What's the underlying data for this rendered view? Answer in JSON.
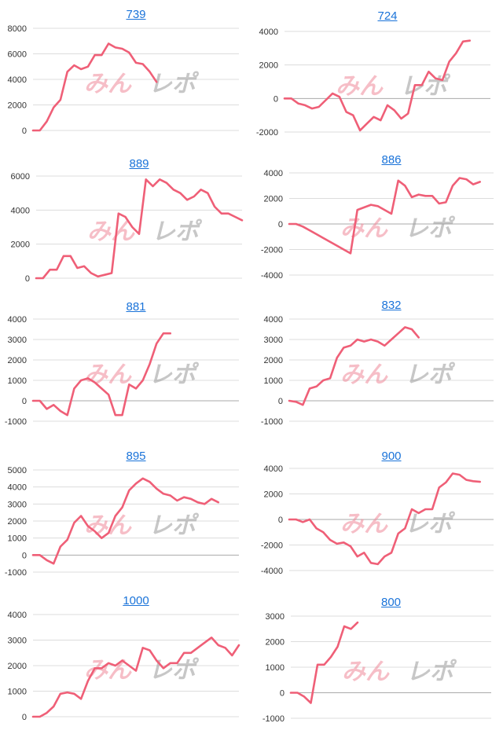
{
  "colors": {
    "series": "#ef5f77",
    "title_link": "#1a73d9",
    "grid": "#dcdcdc"
  },
  "watermark": {
    "part1": "みん",
    "part2": "レポ"
  },
  "chart_data": [
    {
      "type": "line",
      "title": "739",
      "ylim": [
        0,
        8000
      ],
      "yticks": [
        0,
        2000,
        4000,
        6000,
        8000
      ],
      "values": [
        0,
        0,
        700,
        1800,
        2400,
        4600,
        5100,
        4800,
        5000,
        5900,
        5900,
        6800,
        6500,
        6400,
        6100,
        5300,
        5200,
        4600,
        3800
      ]
    },
    {
      "type": "line",
      "title": "724",
      "ylim": [
        -2000,
        4000
      ],
      "yticks": [
        -2000,
        0,
        2000,
        4000
      ],
      "values": [
        0,
        0,
        -300,
        -400,
        -600,
        -500,
        -100,
        300,
        100,
        -800,
        -1000,
        -1900,
        -1500,
        -1100,
        -1300,
        -400,
        -700,
        -1200,
        -900,
        800,
        800,
        1600,
        1200,
        1100,
        2200,
        2700,
        3400,
        3450
      ]
    },
    {
      "type": "line",
      "title": "889",
      "ylim": [
        0,
        6000
      ],
      "yticks": [
        0,
        2000,
        4000,
        6000
      ],
      "values": [
        0,
        0,
        500,
        500,
        1300,
        1300,
        600,
        700,
        300,
        100,
        200,
        300,
        3800,
        3600,
        3000,
        2600,
        5800,
        5400,
        5800,
        5600,
        5200,
        5000,
        4600,
        4800,
        5200,
        5000,
        4200,
        3800,
        3800,
        3600,
        3400
      ]
    },
    {
      "type": "line",
      "title": "886",
      "ylim": [
        -4000,
        4000
      ],
      "yticks": [
        -4000,
        -2000,
        0,
        2000,
        4000
      ],
      "values": [
        0,
        0,
        -200,
        -500,
        -800,
        -1100,
        -1400,
        -1700,
        -2000,
        -2300,
        1100,
        1300,
        1500,
        1400,
        1100,
        800,
        3400,
        3000,
        2100,
        2300,
        2200,
        2200,
        1600,
        1700,
        3000,
        3600,
        3500,
        3100,
        3300
      ]
    },
    {
      "type": "line",
      "title": "881",
      "ylim": [
        -1000,
        4000
      ],
      "yticks": [
        -1000,
        0,
        1000,
        2000,
        3000,
        4000
      ],
      "values": [
        0,
        0,
        -400,
        -200,
        -500,
        -700,
        600,
        1000,
        1100,
        900,
        600,
        300,
        -700,
        -700,
        800,
        600,
        1000,
        1800,
        2800,
        3300,
        3300
      ]
    },
    {
      "type": "line",
      "title": "832",
      "ylim": [
        -1000,
        4000
      ],
      "yticks": [
        -1000,
        0,
        1000,
        2000,
        3000,
        4000
      ],
      "values": [
        0,
        -50,
        -200,
        600,
        700,
        1000,
        1100,
        2100,
        2600,
        2700,
        3000,
        2900,
        3000,
        2900,
        2700,
        3000,
        3300,
        3600,
        3500,
        3100
      ]
    },
    {
      "type": "line",
      "title": "895",
      "ylim": [
        -1000,
        5000
      ],
      "yticks": [
        -1000,
        0,
        1000,
        2000,
        3000,
        4000,
        5000
      ],
      "values": [
        0,
        0,
        -300,
        -500,
        500,
        900,
        1900,
        2300,
        1700,
        1400,
        1000,
        1300,
        2300,
        2800,
        3800,
        4200,
        4500,
        4300,
        3900,
        3600,
        3500,
        3200,
        3400,
        3300,
        3100,
        3000,
        3300,
        3100
      ]
    },
    {
      "type": "line",
      "title": "900",
      "ylim": [
        -4000,
        4000
      ],
      "yticks": [
        -4000,
        -2000,
        0,
        2000,
        4000
      ],
      "values": [
        0,
        0,
        -200,
        0,
        -700,
        -1000,
        -1600,
        -1900,
        -1800,
        -2100,
        -2900,
        -2600,
        -3400,
        -3500,
        -2900,
        -2600,
        -1100,
        -700,
        800,
        500,
        800,
        800,
        2500,
        2900,
        3600,
        3500,
        3100,
        3000,
        2950
      ]
    },
    {
      "type": "line",
      "title": "1000",
      "ylim": [
        0,
        4000
      ],
      "yticks": [
        0,
        1000,
        2000,
        3000,
        4000
      ],
      "values": [
        0,
        0,
        150,
        400,
        900,
        950,
        900,
        700,
        1400,
        1900,
        1900,
        2100,
        2000,
        2200,
        2000,
        1800,
        2700,
        2600,
        2200,
        1900,
        2100,
        2100,
        2500,
        2500,
        2700,
        2900,
        3100,
        2800,
        2700,
        2400,
        2800
      ]
    },
    {
      "type": "line",
      "title": "800",
      "ylim": [
        -1000,
        3000
      ],
      "yticks": [
        -1000,
        0,
        1000,
        2000,
        3000
      ],
      "values": [
        0,
        0,
        -150,
        -400,
        1100,
        1100,
        1400,
        1800,
        2600,
        2500,
        2750
      ]
    }
  ]
}
